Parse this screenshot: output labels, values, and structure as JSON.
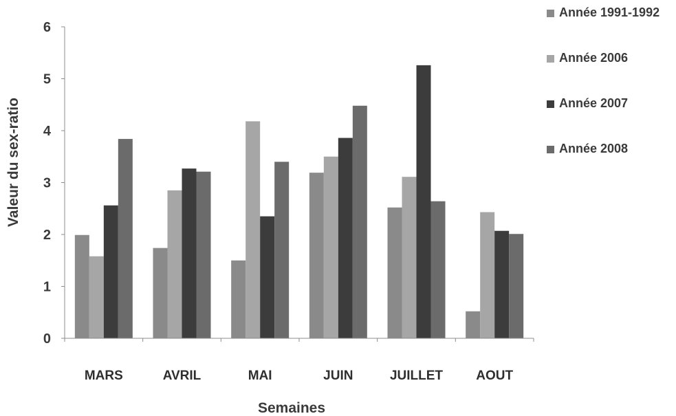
{
  "chart_data": {
    "type": "bar",
    "xlabel": "Semaines",
    "ylabel": "Valeur du sex-ratio",
    "ylim": [
      0,
      6
    ],
    "yticks": [
      "0",
      "1",
      "2",
      "3",
      "4",
      "5",
      "6"
    ],
    "categories": [
      "MARS",
      "AVRIL",
      "MAI",
      "JUIN",
      "JUILLET",
      "AOUT"
    ],
    "series": [
      {
        "name": "Année 1991-1992",
        "color": "#8a8a8a",
        "values": [
          1.99,
          1.74,
          1.5,
          3.19,
          2.52,
          0.52
        ]
      },
      {
        "name": "Année 2006",
        "color": "#a6a6a6",
        "values": [
          1.58,
          2.85,
          4.18,
          3.5,
          3.11,
          2.43
        ]
      },
      {
        "name": "Année 2007",
        "color": "#3c3c3c",
        "values": [
          2.56,
          3.27,
          2.35,
          3.86,
          5.26,
          2.07
        ]
      },
      {
        "name": "Année 2008",
        "color": "#6b6b6b",
        "values": [
          3.84,
          3.21,
          3.4,
          4.48,
          2.64,
          2.01
        ]
      }
    ],
    "legend_position": "top-right",
    "grid": false
  }
}
